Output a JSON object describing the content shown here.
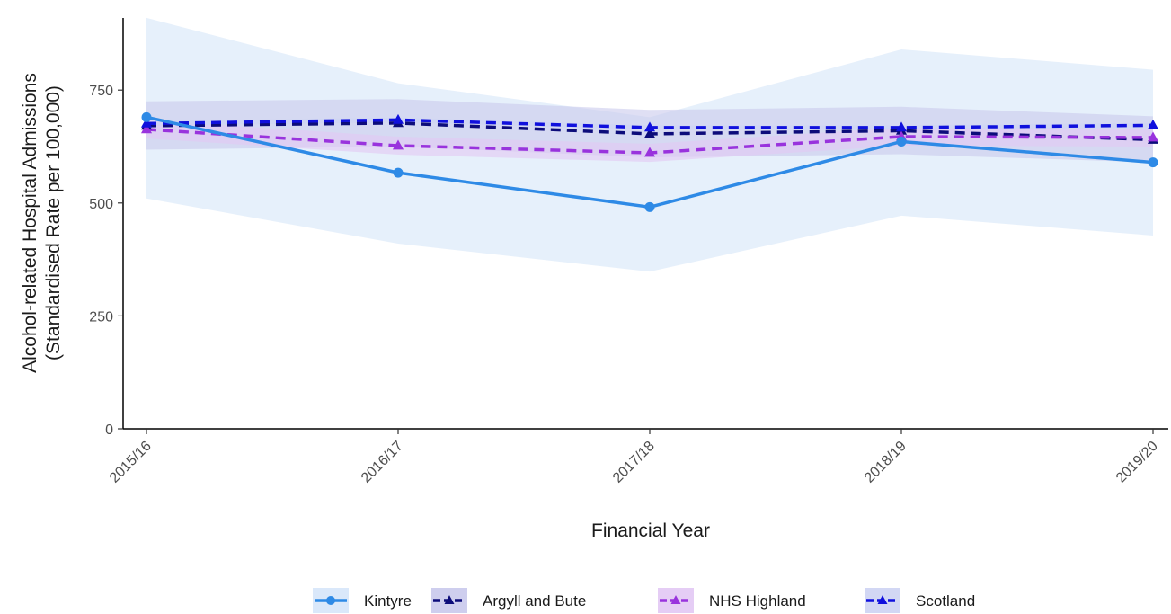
{
  "chart_data": {
    "type": "line",
    "title": "",
    "xlabel": "Financial Year",
    "ylabel_line1": "Alcohol-related Hospital Admissions",
    "ylabel_line2": "(Standardised Rate per 100,000)",
    "categories": [
      "2015/16",
      "2016/17",
      "2017/18",
      "2018/19",
      "2019/20"
    ],
    "ylim": [
      0,
      900
    ],
    "yticks": [
      0,
      250,
      500,
      750
    ],
    "ytick_labels": [
      "0",
      "250",
      "500",
      "750"
    ],
    "grid": false,
    "legend_position": "bottom",
    "series": [
      {
        "name": "Kintyre",
        "values": [
          690,
          567,
          491,
          636,
          590
        ],
        "ci_lower": [
          510,
          410,
          348,
          472,
          428
        ],
        "ci_upper": [
          910,
          765,
          690,
          840,
          795
        ],
        "color": "#2e8ae6",
        "band_color": "#d6e6f9",
        "line_style": "solid",
        "marker": "circle"
      },
      {
        "name": "Argyll and Bute",
        "values": [
          671,
          677,
          653,
          660,
          640
        ],
        "ci_lower": [
          618,
          625,
          601,
          608,
          590
        ],
        "ci_upper": [
          725,
          730,
          706,
          713,
          692
        ],
        "color": "#0c0c7a",
        "band_color": "#c9c9ec",
        "line_style": "dashed",
        "marker": "triangle"
      },
      {
        "name": "NHS Highland",
        "values": [
          663,
          627,
          611,
          647,
          645
        ],
        "ci_lower": [
          643,
          607,
          591,
          627,
          625
        ],
        "ci_upper": [
          683,
          647,
          631,
          667,
          665
        ],
        "color": "#9933dd",
        "band_color": "#e2c8f4",
        "line_style": "dashed",
        "marker": "triangle"
      },
      {
        "name": "Scotland",
        "values": [
          676,
          684,
          667,
          667,
          672
        ],
        "ci_lower": [
          671,
          679,
          662,
          662,
          667
        ],
        "ci_upper": [
          681,
          689,
          672,
          672,
          677
        ],
        "color": "#1010dd",
        "band_color": "#cdd3f3",
        "line_style": "dashed",
        "marker": "triangle"
      }
    ]
  }
}
